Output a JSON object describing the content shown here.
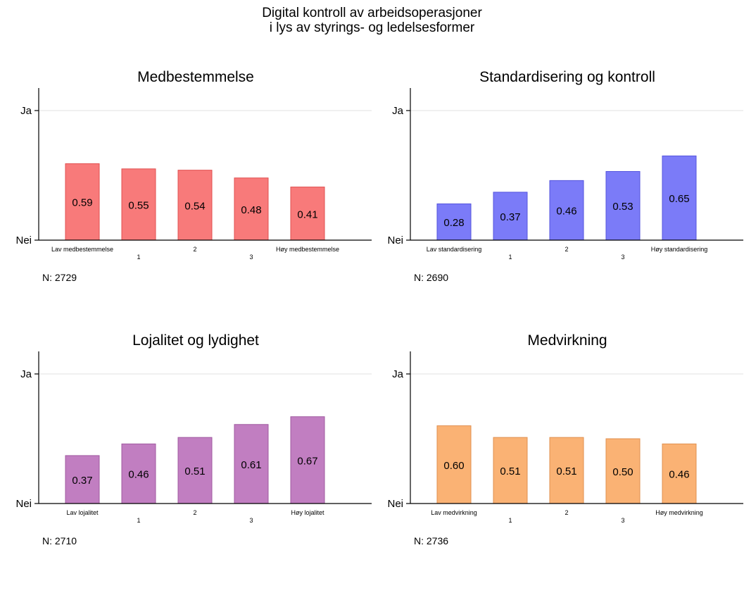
{
  "title_lines": [
    "Digital kontroll av arbeidsoperasjoner",
    "i lys av styrings- og ledelsesformer"
  ],
  "chart_data": [
    {
      "type": "bar",
      "title": "Medbestemmelse",
      "categories": [
        "Lav medbestemmelse",
        "1",
        "2",
        "3",
        "Høy medbestemmelse"
      ],
      "values": [
        0.59,
        0.55,
        0.54,
        0.48,
        0.41
      ],
      "value_labels": [
        "0.59",
        "0.55",
        "0.54",
        "0.48",
        "0.41"
      ],
      "ytick_labels": [
        "Nei",
        "Ja"
      ],
      "ylim": [
        0,
        1
      ],
      "n_label": "N: 2729",
      "color": "#f87a7a",
      "stroke": "#e05050"
    },
    {
      "type": "bar",
      "title": "Standardisering og kontroll",
      "categories": [
        "Lav standardisering",
        "1",
        "2",
        "3",
        "Høy standardisering"
      ],
      "values": [
        0.28,
        0.37,
        0.46,
        0.53,
        0.65
      ],
      "value_labels": [
        "0.28",
        "0.37",
        "0.46",
        "0.53",
        "0.65"
      ],
      "ytick_labels": [
        "Nei",
        "Ja"
      ],
      "ylim": [
        0,
        1
      ],
      "n_label": "N: 2690",
      "color": "#7b7bf8",
      "stroke": "#5555dd"
    },
    {
      "type": "bar",
      "title": "Lojalitet og lydighet",
      "categories": [
        "Lav lojalitet",
        "1",
        "2",
        "3",
        "Høy lojalitet"
      ],
      "values": [
        0.37,
        0.46,
        0.51,
        0.61,
        0.67
      ],
      "value_labels": [
        "0.37",
        "0.46",
        "0.51",
        "0.61",
        "0.67"
      ],
      "ytick_labels": [
        "Nei",
        "Ja"
      ],
      "ylim": [
        0,
        1
      ],
      "n_label": "N: 2710",
      "color": "#c17ec1",
      "stroke": "#a05aa0"
    },
    {
      "type": "bar",
      "title": "Medvirkning",
      "categories": [
        "Lav medvirkning",
        "1",
        "2",
        "3",
        "Høy medvirkning"
      ],
      "values": [
        0.6,
        0.51,
        0.51,
        0.5,
        0.46
      ],
      "value_labels": [
        "0.60",
        "0.51",
        "0.51",
        "0.50",
        "0.46"
      ],
      "ytick_labels": [
        "Nei",
        "Ja"
      ],
      "ylim": [
        0,
        1
      ],
      "n_label": "N: 2736",
      "color": "#fab274",
      "stroke": "#e09050"
    }
  ]
}
